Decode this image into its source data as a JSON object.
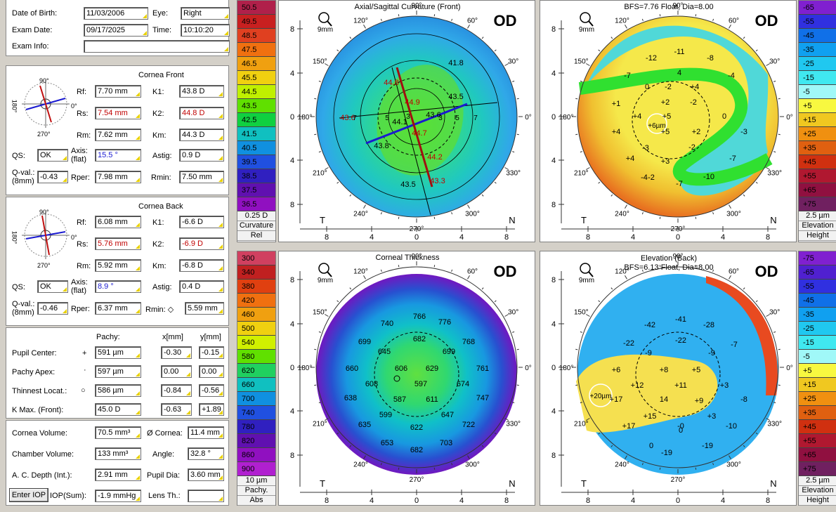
{
  "patient": {
    "dob_label": "Date of Birth:",
    "dob": "11/03/2006",
    "eye_label": "Eye:",
    "eye": "Right",
    "exam_label": "Exam Date:",
    "exam_date": "09/17/2025",
    "time_label": "Time:",
    "time": "10:10:20",
    "info_label": "Exam Info:",
    "info": ""
  },
  "cornea_front": {
    "title": "Cornea Front",
    "rf_label": "Rf:",
    "rf": "7.70 mm",
    "rs_label": "Rs:",
    "rs": "7.54 mm",
    "rm_label": "Rm:",
    "rm": "7.62 mm",
    "k1_label": "K1:",
    "k1": "43.8 D",
    "k2_label": "K2:",
    "k2": "44.8 D",
    "km_label": "Km:",
    "km": "44.3 D",
    "qs_label": "QS:",
    "qs": "OK",
    "axis_label": "Axis:",
    "axis_sub": "(flat)",
    "axis": "15.5 °",
    "astig_label": "Astig:",
    "astig": "0.9 D",
    "qval_label": "Q-val.:",
    "qval_sub": "(8mm)",
    "qval": "-0.43",
    "rper_label": "Rper:",
    "rper": "7.98 mm",
    "rmin_label": "Rmin:",
    "rmin": "7.50 mm",
    "ang_top": "90°",
    "ang_left": "180°",
    "ang_right": "0°",
    "ang_bottom": "270°"
  },
  "cornea_back": {
    "title": "Cornea Back",
    "rf_label": "Rf:",
    "rf": "6.08 mm",
    "rs_label": "Rs:",
    "rs": "5.76 mm",
    "rm_label": "Rm:",
    "rm": "5.92 mm",
    "k1_label": "K1:",
    "k1": "-6.6 D",
    "k2_label": "K2:",
    "k2": "-6.9 D",
    "km_label": "Km:",
    "km": "-6.8 D",
    "qs_label": "QS:",
    "qs": "OK",
    "axis_label": "Axis:",
    "axis_sub": "(flat)",
    "axis": "8.9 °",
    "astig_label": "Astig:",
    "astig": "0.4 D",
    "qval_label": "Q-val.:",
    "qval_sub": "(8mm)",
    "qval": "-0.46",
    "rper_label": "Rper:",
    "rper": "6.37 mm",
    "rmin_label": "Rmin: ◇",
    "rmin": "5.59 mm",
    "ang_top": "90°",
    "ang_left": "180°",
    "ang_right": "0°",
    "ang_bottom": "270°"
  },
  "pachy": {
    "col_pachy": "Pachy:",
    "col_x": "x[mm]",
    "col_y": "y[mm]",
    "rows": [
      {
        "label": "Pupil Center:",
        "sym": "+",
        "pachy": "591 µm",
        "x": "-0.30",
        "y": "-0.15"
      },
      {
        "label": "Pachy Apex:",
        "sym": "·",
        "pachy": "597 µm",
        "x": "0.00",
        "y": "0.00"
      },
      {
        "label": "Thinnest Locat.:",
        "sym": "○",
        "pachy": "586 µm",
        "x": "-0.84",
        "y": "-0.56"
      },
      {
        "label": "K Max. (Front):",
        "sym": "",
        "pachy": "45.0 D",
        "x": "-0.63",
        "y": "+1.89"
      }
    ]
  },
  "volume": {
    "cv_label": "Cornea Volume:",
    "cv": "70.5 mm³",
    "dc_label": "Ø Cornea:",
    "dc": "11.4 mm",
    "chv_label": "Chamber Volume:",
    "chv": "133 mm³",
    "angle_label": "Angle:",
    "angle": "32.8 °",
    "acd_label": "A. C. Depth (Int.):",
    "acd": "2.91 mm",
    "pupil_label": "Pupil Dia:",
    "pupil": "3.60 mm",
    "enter_iop": "Enter IOP",
    "iop_label": "IOP(Sum):",
    "iop": "-1.9 mmHg",
    "lens_label": "Lens Th.:",
    "lens": ""
  },
  "scales": {
    "curvature": {
      "values": [
        "50.5",
        "49.5",
        "48.5",
        "47.5",
        "46.5",
        "45.5",
        "44.5",
        "43.5",
        "42.5",
        "41.5",
        "40.5",
        "39.5",
        "38.5",
        "37.5",
        "36.5"
      ],
      "colors": [
        "#b0204a",
        "#c82020",
        "#e04020",
        "#f07010",
        "#f0a010",
        "#f0d010",
        "#c0f000",
        "#60e000",
        "#10d040",
        "#10c0c0",
        "#1090e0",
        "#2050e0",
        "#3020c0",
        "#6010b0",
        "#9010c0"
      ],
      "step": "0.25 D",
      "name": "Curvature",
      "mode": "Rel"
    },
    "elevation_front": {
      "values": [
        "-65",
        "-55",
        "-45",
        "-35",
        "-25",
        "-15",
        "-5",
        "+5",
        "+15",
        "+25",
        "+35",
        "+45",
        "+55",
        "+65",
        "+75"
      ],
      "colors": [
        "#8020d0",
        "#3030e0",
        "#1070e8",
        "#10a0f0",
        "#20c8f0",
        "#40e8f0",
        "#a0f8f8",
        "#f8f840",
        "#f0c820",
        "#f09010",
        "#e06010",
        "#d03010",
        "#b01830",
        "#901040",
        "#702060"
      ],
      "step": "2.5 µm",
      "name": "Elevation",
      "mode": "Height"
    },
    "pachy": {
      "values": [
        "300",
        "340",
        "380",
        "420",
        "460",
        "500",
        "540",
        "580",
        "620",
        "660",
        "700",
        "740",
        "780",
        "820",
        "860",
        "900"
      ],
      "colors": [
        "#d04060",
        "#c02020",
        "#e04010",
        "#f07010",
        "#f0a010",
        "#f0d010",
        "#d0f000",
        "#60e000",
        "#20d060",
        "#10c0c0",
        "#1090e0",
        "#2050e0",
        "#3020c0",
        "#6010b0",
        "#9010c0",
        "#b020d0"
      ],
      "step": "10 µm",
      "name": "Pachy.",
      "mode": "Abs"
    },
    "elevation_back": {
      "values": [
        "-75",
        "-65",
        "-55",
        "-45",
        "-35",
        "-25",
        "-15",
        "-5",
        "+5",
        "+15",
        "+25",
        "+35",
        "+45",
        "+55",
        "+65",
        "+75"
      ],
      "colors": [
        "#8020d0",
        "#5020d0",
        "#3030e0",
        "#1070e8",
        "#10a0f0",
        "#20c8f0",
        "#40e8f0",
        "#a0f8f8",
        "#f8f840",
        "#f0c820",
        "#f09010",
        "#e06010",
        "#d03010",
        "#b01830",
        "#901040",
        "#702060"
      ],
      "step": "2.5 µm",
      "name": "Elevation",
      "mode": "Height"
    }
  },
  "maps": {
    "sagittal": {
      "title": "Axial/Sagittal Curvature (Front)",
      "od": "OD",
      "mag": "9mm",
      "t": "T",
      "n": "N",
      "deg": [
        "90°",
        "120°",
        "60°",
        "150°",
        "30°",
        "180°",
        "0°",
        "210°",
        "330°",
        "240°",
        "300°",
        "270°"
      ],
      "xaxis": [
        "8",
        "4",
        "0",
        "4",
        "8"
      ],
      "yaxis": [
        "8",
        "4",
        "0",
        "4",
        "8"
      ],
      "ring_labels": [
        "7",
        "5",
        "3",
        "3",
        "5",
        "7"
      ],
      "values": [
        "41.8",
        "44.8",
        "44.9",
        "43.5",
        "43.6",
        "44.1",
        "43.6",
        "44.7",
        "43.8",
        "44.2",
        "43.5",
        "43.3"
      ]
    },
    "elev_front": {
      "title": "BFS=7.76 Float, Dia=8.00",
      "od": "OD",
      "mag": "9mm",
      "t": "T",
      "n": "N",
      "deg": [
        "90°",
        "120°",
        "60°",
        "150°",
        "30°",
        "180°",
        "0°",
        "210°",
        "330°",
        "240°",
        "300°",
        "270°"
      ],
      "xaxis": [
        "8",
        "4",
        "0",
        "4",
        "8"
      ],
      "yaxis": [
        "8",
        "4",
        "0",
        "4",
        "8"
      ],
      "values": [
        "-11",
        "-12",
        "-8",
        "-7",
        "4",
        "-4",
        "0",
        "-2",
        "+4",
        "+2",
        "-2",
        "+1",
        "+4",
        "+5",
        "0",
        "+4",
        "+5",
        "+2",
        "-3",
        "+4",
        "-3",
        "+3",
        "-2",
        "-7",
        "-2",
        "-7",
        "-10",
        "-4"
      ],
      "center": "+6µm"
    },
    "thickness": {
      "title": "Corneal Thickness",
      "od": "OD",
      "mag": "9mm",
      "t": "T",
      "n": "N",
      "deg": [
        "90°",
        "120°",
        "60°",
        "150°",
        "30°",
        "180°",
        "0°",
        "210°",
        "330°",
        "240°",
        "300°",
        "270°"
      ],
      "xaxis": [
        "8",
        "4",
        "0",
        "4",
        "8"
      ],
      "yaxis": [
        "8",
        "4",
        "0",
        "4",
        "8"
      ],
      "values": [
        "766",
        "740",
        "776",
        "682",
        "699",
        "768",
        "645",
        "699",
        "660",
        "606",
        "629",
        "761",
        "608",
        "597",
        "674",
        "638",
        "587",
        "611",
        "747",
        "599",
        "647",
        "635",
        "622",
        "722",
        "653",
        "682",
        "703"
      ]
    },
    "elev_back": {
      "title": "Elevation (Back)",
      "subtitle": "BFS=6.13 Float, Dia=8.00",
      "od": "OD",
      "mag": "9mm",
      "t": "T",
      "n": "N",
      "deg": [
        "90°",
        "120°",
        "60°",
        "150°",
        "30°",
        "180°",
        "0°",
        "210°",
        "330°",
        "240°",
        "300°",
        "270°"
      ],
      "xaxis": [
        "8",
        "4",
        "0",
        "4",
        "8"
      ],
      "yaxis": [
        "8",
        "4",
        "0",
        "4",
        "8"
      ],
      "values": [
        "-42",
        "-41",
        "-28",
        "-22",
        "-22",
        "-9",
        "-9",
        "-7",
        "+6",
        "+8",
        "+5",
        "+12",
        "+11",
        "+3",
        "+17",
        "14",
        "+9",
        "-8",
        "+15",
        "0",
        "+3",
        "+17",
        "-10",
        "0",
        "-19",
        "-19",
        "-0"
      ],
      "center": "+20µm"
    }
  }
}
